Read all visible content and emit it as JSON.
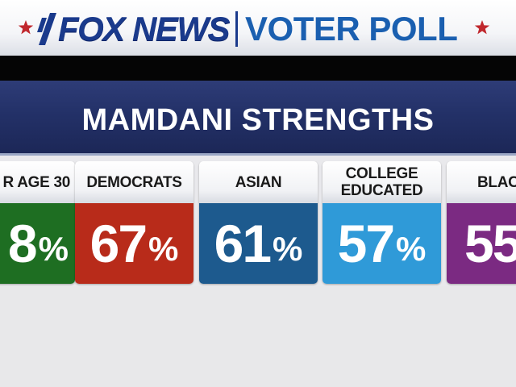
{
  "header": {
    "network": "FOX NEWS",
    "poll": "VOTER POLL",
    "accent_color": "#1a3a8c",
    "star_color": "#c0272d"
  },
  "title": "MAMDANI STRENGTHS",
  "cards": [
    {
      "label": "R AGE 30",
      "value": "8",
      "unit": "%",
      "color": "#1e6e22"
    },
    {
      "label": "DEMOCRATS",
      "value": "67",
      "unit": "%",
      "color": "#b82b1a"
    },
    {
      "label": "ASIAN",
      "value": "61",
      "unit": "%",
      "color": "#1d5a8e"
    },
    {
      "label": "COLLEGE\nEDUCATED",
      "value": "57",
      "unit": "%",
      "color": "#2f9ad8"
    },
    {
      "label": "BLAC",
      "value": "55",
      "unit": "",
      "color": "#7b2a82"
    }
  ]
}
